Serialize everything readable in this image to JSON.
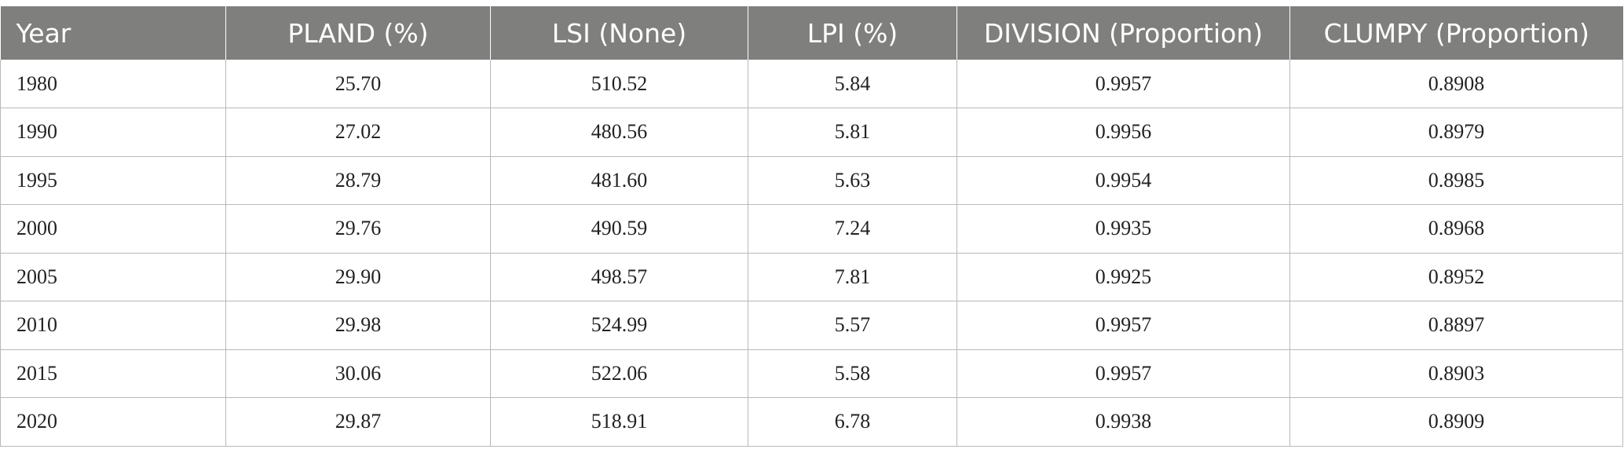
{
  "table": {
    "headers": [
      "Year",
      "PLAND (%)",
      "LSI (None)",
      "LPI (%)",
      "DIVISION (Proportion)",
      "CLUMPY (Proportion)"
    ],
    "rows": [
      [
        "1980",
        "25.70",
        "510.52",
        "5.84",
        "0.9957",
        "0.8908"
      ],
      [
        "1990",
        "27.02",
        "480.56",
        "5.81",
        "0.9956",
        "0.8979"
      ],
      [
        "1995",
        "28.79",
        "481.60",
        "5.63",
        "0.9954",
        "0.8985"
      ],
      [
        "2000",
        "29.76",
        "490.59",
        "7.24",
        "0.9935",
        "0.8968"
      ],
      [
        "2005",
        "29.90",
        "498.57",
        "7.81",
        "0.9925",
        "0.8952"
      ],
      [
        "2010",
        "29.98",
        "524.99",
        "5.57",
        "0.9957",
        "0.8897"
      ],
      [
        "2015",
        "30.06",
        "522.06",
        "5.58",
        "0.9957",
        "0.8903"
      ],
      [
        "2020",
        "29.87",
        "518.91",
        "6.78",
        "0.9938",
        "0.8909"
      ]
    ]
  },
  "colors": {
    "header_bg": "#7f807e",
    "header_text": "#ffffff",
    "grid_line": "#b9b9b9",
    "cell_text": "#222222"
  }
}
